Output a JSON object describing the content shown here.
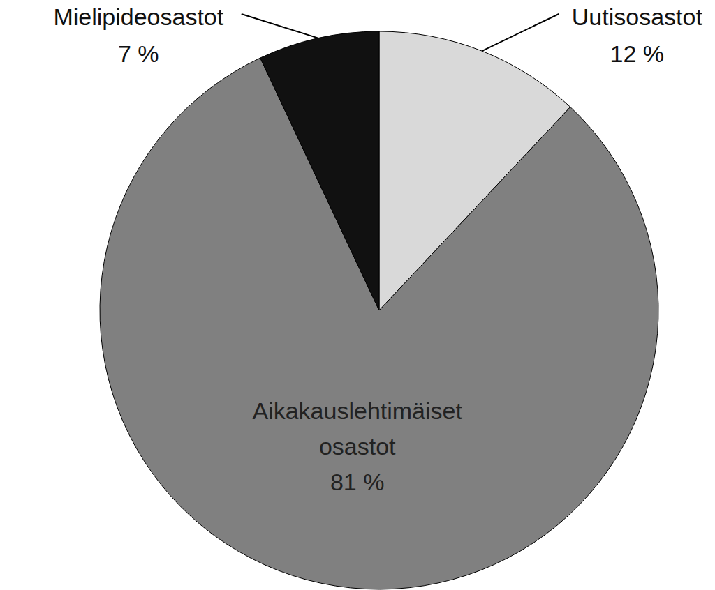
{
  "chart_data": {
    "type": "pie",
    "categories": [
      "Uutisosastot",
      "Aikakauslehtimäiset osastot",
      "Mielipideosastot"
    ],
    "values": [
      12,
      81,
      7
    ],
    "value_labels": [
      "12 %",
      "81 %",
      "7 %"
    ],
    "colors": [
      "#d9d9d9",
      "#808080",
      "#111111"
    ],
    "data_labels": true
  }
}
